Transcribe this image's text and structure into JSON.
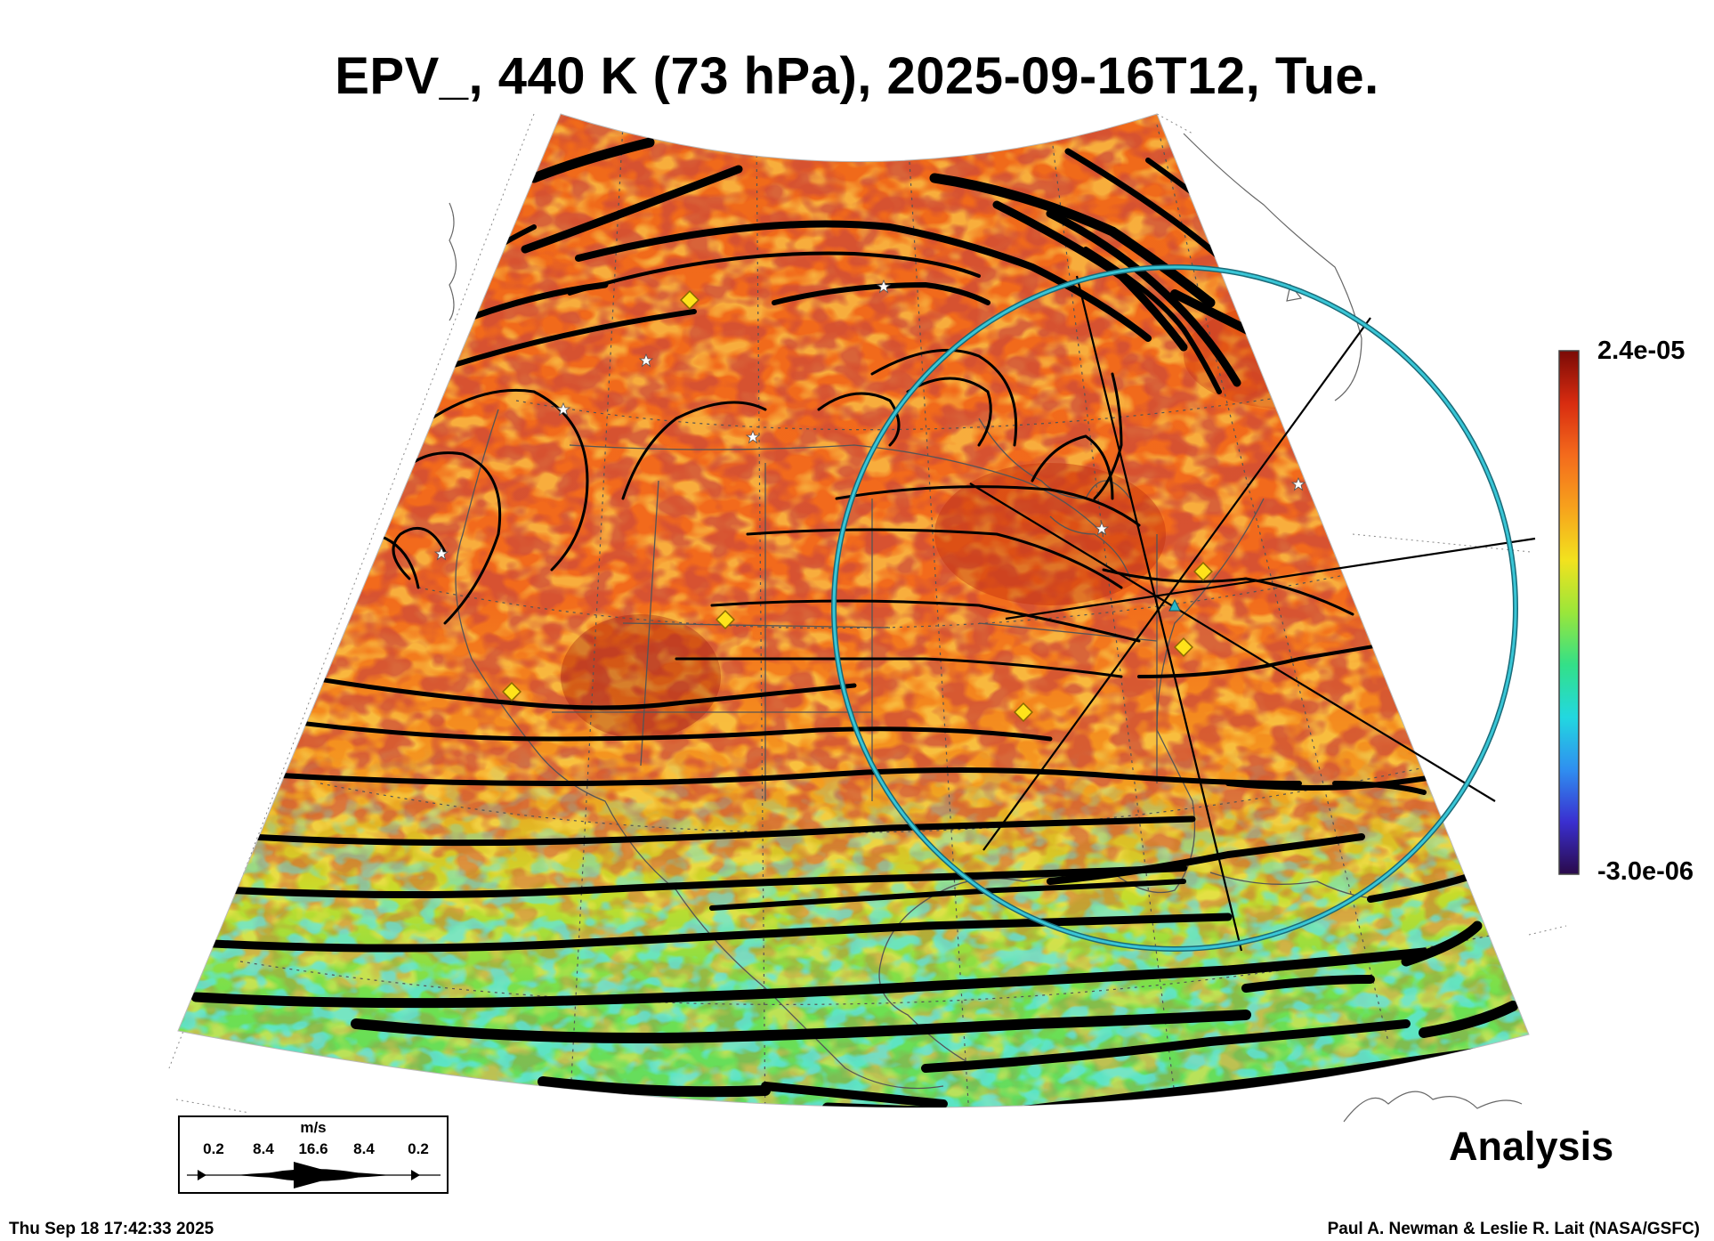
{
  "title": "EPV_, 440 K (73 hPa), 2025-09-16T12, Tue.",
  "colorbar": {
    "max_label": "2.4e-05",
    "min_label": "-3.0e-06",
    "max_value": 2.4e-05,
    "min_value": -3e-06,
    "colors": [
      "#2a0a4a",
      "#3a2fd0",
      "#2f8ff0",
      "#22d8e0",
      "#33e088",
      "#9ae63a",
      "#f2e21e",
      "#f7a21c",
      "#f46b1c",
      "#d82c10",
      "#7a0a06"
    ]
  },
  "legend": {
    "unit": "m/s",
    "labels": [
      "0.2",
      "8.4",
      "16.6",
      "8.4",
      "0.2"
    ]
  },
  "label_analysis": "Analysis",
  "footer": {
    "date": "Thu Sep 18 17:42:33 2025",
    "credit": "Paul A. Newman & Leslie R. Lait (NASA/GSFC)"
  },
  "colors": {
    "ring": "#29b8c8",
    "marker_diamond": "#ffe21a",
    "marker_star": "#ffffff",
    "streamline": "#000000"
  }
}
